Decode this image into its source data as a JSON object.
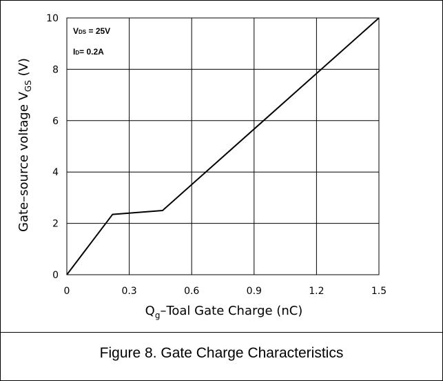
{
  "chart_data": {
    "type": "line",
    "title": "",
    "xlabel": {
      "main": "Q",
      "sub": "g",
      "rest": "–Toal Gate Charge  (nC)"
    },
    "ylabel": {
      "main": "Gate–source voltage V",
      "sub": "GS",
      "rest": " (V)"
    },
    "xlim": [
      0,
      1.5
    ],
    "ylim": [
      0,
      10
    ],
    "xticks": [
      "0",
      "0.3",
      "0.6",
      "0.9",
      "1.2",
      "1.5"
    ],
    "yticks": [
      "0",
      "2",
      "4",
      "6",
      "8",
      "10"
    ],
    "grid": true,
    "legend": "none",
    "series": [
      {
        "x": [
          0,
          0.22,
          0.46,
          1.5
        ],
        "y": [
          0,
          2.35,
          2.5,
          10
        ]
      }
    ],
    "annotations": [
      {
        "main": "V",
        "sub": "DS",
        "rest": " = 25V"
      },
      {
        "main": "I",
        "sub": "D",
        "rest": "= 0.2A"
      }
    ],
    "line_color": "#000000"
  },
  "caption": "Figure 8. Gate Charge Characteristics"
}
